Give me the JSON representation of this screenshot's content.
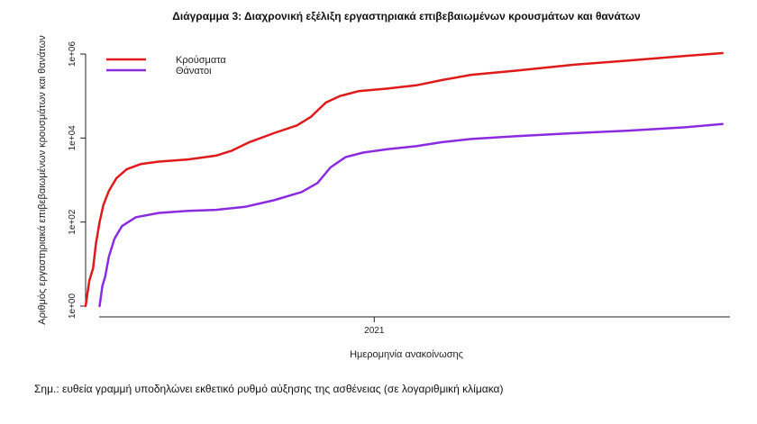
{
  "chart_data": {
    "type": "line",
    "title": "Διάγραμμα 3: Διαχρονική εξέλιξη εργαστηριακά επιβεβαιωμένων κρουσμάτων και θανάτων",
    "xlabel": "Ημερομηνία ανακοίνωσης",
    "ylabel": "Αριθμός εργαστηριακά επιβεβαιωμένων κρουσμάτων και θανάτων",
    "y_scale": "log10",
    "ylim": [
      1,
      1000000
    ],
    "y_ticks": [
      {
        "value": 1,
        "label": "1e+00"
      },
      {
        "value": 100,
        "label": "1e+02"
      },
      {
        "value": 10000,
        "label": "1e+04"
      },
      {
        "value": 1000000,
        "label": "1e+06"
      }
    ],
    "xlim": [
      "2020-02-26",
      "2022-01-18"
    ],
    "x_ticks": [
      {
        "value": "2021-01-01",
        "label": "2021"
      }
    ],
    "grid": false,
    "legend_position": "top-left",
    "series": [
      {
        "name": "Κρούσματα",
        "color": "#e0191a",
        "points": [
          [
            "2020-02-26",
            1
          ],
          [
            "2020-03-01",
            4
          ],
          [
            "2020-03-05",
            8
          ],
          [
            "2020-03-08",
            30
          ],
          [
            "2020-03-12",
            100
          ],
          [
            "2020-03-16",
            250
          ],
          [
            "2020-03-22",
            550
          ],
          [
            "2020-03-30",
            1100
          ],
          [
            "2020-04-10",
            1800
          ],
          [
            "2020-04-25",
            2400
          ],
          [
            "2020-05-15",
            2750
          ],
          [
            "2020-06-15",
            3100
          ],
          [
            "2020-07-15",
            3800
          ],
          [
            "2020-08-01",
            5000
          ],
          [
            "2020-08-20",
            8000
          ],
          [
            "2020-09-15",
            13000
          ],
          [
            "2020-10-10",
            20000
          ],
          [
            "2020-10-25",
            32000
          ],
          [
            "2020-11-10",
            70000
          ],
          [
            "2020-11-25",
            100000
          ],
          [
            "2020-12-15",
            130000
          ],
          [
            "2021-01-15",
            150000
          ],
          [
            "2021-02-15",
            180000
          ],
          [
            "2021-03-15",
            240000
          ],
          [
            "2021-04-15",
            320000
          ],
          [
            "2021-06-01",
            400000
          ],
          [
            "2021-08-01",
            550000
          ],
          [
            "2021-10-01",
            700000
          ],
          [
            "2021-12-01",
            900000
          ],
          [
            "2022-01-10",
            1050000
          ]
        ]
      },
      {
        "name": "Θάνατοι",
        "color": "#8a2be2",
        "points": [
          [
            "2020-03-12",
            1
          ],
          [
            "2020-03-15",
            3
          ],
          [
            "2020-03-18",
            5
          ],
          [
            "2020-03-22",
            15
          ],
          [
            "2020-03-28",
            40
          ],
          [
            "2020-04-05",
            80
          ],
          [
            "2020-04-20",
            130
          ],
          [
            "2020-05-15",
            165
          ],
          [
            "2020-06-15",
            185
          ],
          [
            "2020-07-15",
            195
          ],
          [
            "2020-08-15",
            230
          ],
          [
            "2020-09-15",
            330
          ],
          [
            "2020-10-15",
            520
          ],
          [
            "2020-11-01",
            850
          ],
          [
            "2020-11-15",
            2000
          ],
          [
            "2020-12-01",
            3500
          ],
          [
            "2020-12-20",
            4500
          ],
          [
            "2021-01-15",
            5400
          ],
          [
            "2021-02-15",
            6400
          ],
          [
            "2021-03-15",
            8000
          ],
          [
            "2021-04-15",
            9500
          ],
          [
            "2021-06-01",
            11000
          ],
          [
            "2021-08-01",
            13000
          ],
          [
            "2021-10-01",
            15000
          ],
          [
            "2021-12-01",
            18000
          ],
          [
            "2022-01-10",
            21500
          ]
        ]
      }
    ]
  },
  "note": "Σημ.: ευθεία γραμμή υποδηλώνει εκθετικό ρυθμό αύξησης της ασθένειας (σε λογαριθμική κλίμακα)"
}
